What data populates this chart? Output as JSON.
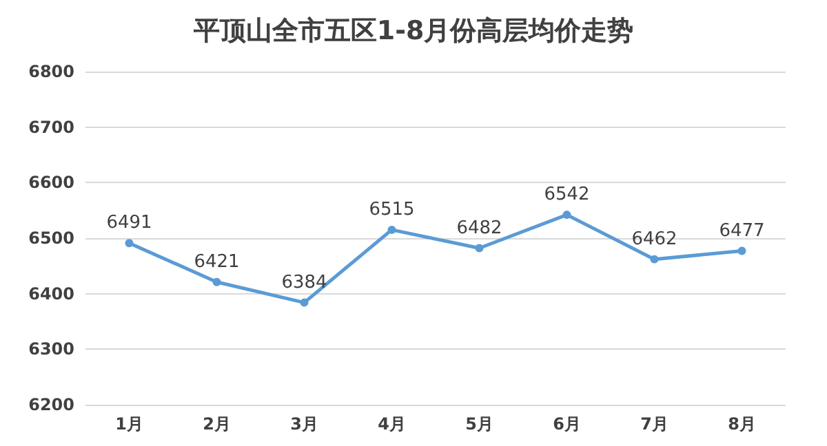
{
  "chart_data": {
    "type": "line",
    "title": "平顶山全市五区1-8月份高层均价走势",
    "categories": [
      "1月",
      "2月",
      "3月",
      "4月",
      "5月",
      "6月",
      "7月",
      "8月"
    ],
    "series": [
      {
        "color": "#5b9bd5",
        "values": [
          6491,
          6421,
          6384,
          6515,
          6482,
          6542,
          6462,
          6477
        ]
      }
    ],
    "ylim": [
      6200,
      6800
    ],
    "yticks": [
      6200,
      6300,
      6400,
      6500,
      6600,
      6700,
      6800
    ],
    "grid": "y",
    "marker": "circle",
    "line_style": "solid",
    "data_labels": true
  }
}
